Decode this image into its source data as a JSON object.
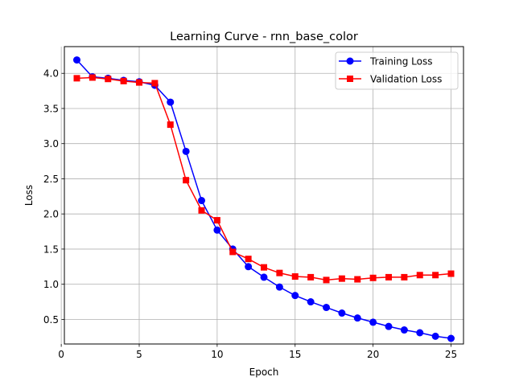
{
  "chart_data": {
    "type": "line",
    "title": "Learning Curve - rnn_base_color",
    "xlabel": "Epoch",
    "ylabel": "Loss",
    "xlim": [
      0.2,
      25.8
    ],
    "ylim": [
      0.15,
      4.38
    ],
    "xticks": [
      0,
      5,
      10,
      15,
      20,
      25
    ],
    "xtick_labels": [
      "0",
      "5",
      "10",
      "15",
      "20",
      "25"
    ],
    "yticks": [
      0.5,
      1.0,
      1.5,
      2.0,
      2.5,
      3.0,
      3.5,
      4.0
    ],
    "ytick_labels": [
      "0.5",
      "1.0",
      "1.5",
      "2.0",
      "2.5",
      "3.0",
      "3.5",
      "4.0"
    ],
    "grid": true,
    "legend_position": "top-right",
    "x": [
      1,
      2,
      3,
      4,
      5,
      6,
      7,
      8,
      9,
      10,
      11,
      12,
      13,
      14,
      15,
      16,
      17,
      18,
      19,
      20,
      21,
      22,
      23,
      24,
      25
    ],
    "series": [
      {
        "name": "Training Loss",
        "color": "#0000ff",
        "marker": "circle",
        "values": [
          4.19,
          3.95,
          3.93,
          3.9,
          3.88,
          3.83,
          3.59,
          2.89,
          2.19,
          1.77,
          1.5,
          1.25,
          1.1,
          0.96,
          0.84,
          0.75,
          0.67,
          0.59,
          0.52,
          0.46,
          0.4,
          0.35,
          0.31,
          0.26,
          0.23
        ]
      },
      {
        "name": "Validation Loss",
        "color": "#ff0000",
        "marker": "square",
        "values": [
          3.93,
          3.94,
          3.92,
          3.89,
          3.87,
          3.86,
          3.27,
          2.48,
          2.05,
          1.91,
          1.46,
          1.36,
          1.24,
          1.16,
          1.11,
          1.1,
          1.06,
          1.08,
          1.07,
          1.09,
          1.1,
          1.1,
          1.13,
          1.13,
          1.15
        ]
      }
    ]
  }
}
